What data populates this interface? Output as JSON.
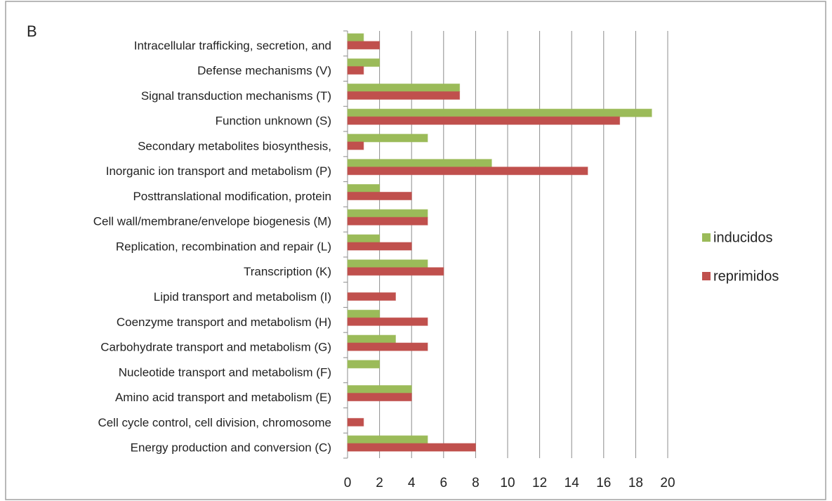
{
  "chart_data": {
    "type": "bar",
    "orientation": "horizontal",
    "panel_label": "B",
    "categories": [
      "Intracellular trafficking, secretion, and",
      "Defense mechanisms (V)",
      "Signal transduction mechanisms (T)",
      "Function unknown (S)",
      "Secondary metabolites biosynthesis,",
      "Inorganic ion transport and metabolism (P)",
      "Posttranslational modification, protein",
      "Cell wall/membrane/envelope biogenesis (M)",
      "Replication, recombination and repair (L)",
      "Transcription (K)",
      "Lipid transport and metabolism (I)",
      "Coenzyme transport and metabolism (H)",
      "Carbohydrate transport and metabolism (G)",
      "Nucleotide transport and metabolism (F)",
      "Amino acid transport and metabolism (E)",
      "Cell cycle control, cell division, chromosome",
      "Energy production and conversion (C)"
    ],
    "series": [
      {
        "name": "inducidos",
        "color": "#9bbb59",
        "values": [
          1,
          2,
          7,
          19,
          5,
          9,
          2,
          5,
          2,
          5,
          0,
          2,
          3,
          2,
          4,
          0,
          5
        ]
      },
      {
        "name": "reprimidos",
        "color": "#c0504d",
        "values": [
          2,
          1,
          7,
          17,
          1,
          15,
          4,
          5,
          4,
          6,
          3,
          5,
          5,
          0,
          4,
          1,
          8
        ]
      }
    ],
    "xlim": [
      0,
      20
    ],
    "xticks": [
      0,
      2,
      4,
      6,
      8,
      10,
      12,
      14,
      16,
      18,
      20
    ],
    "grid": true,
    "legend": "right"
  }
}
